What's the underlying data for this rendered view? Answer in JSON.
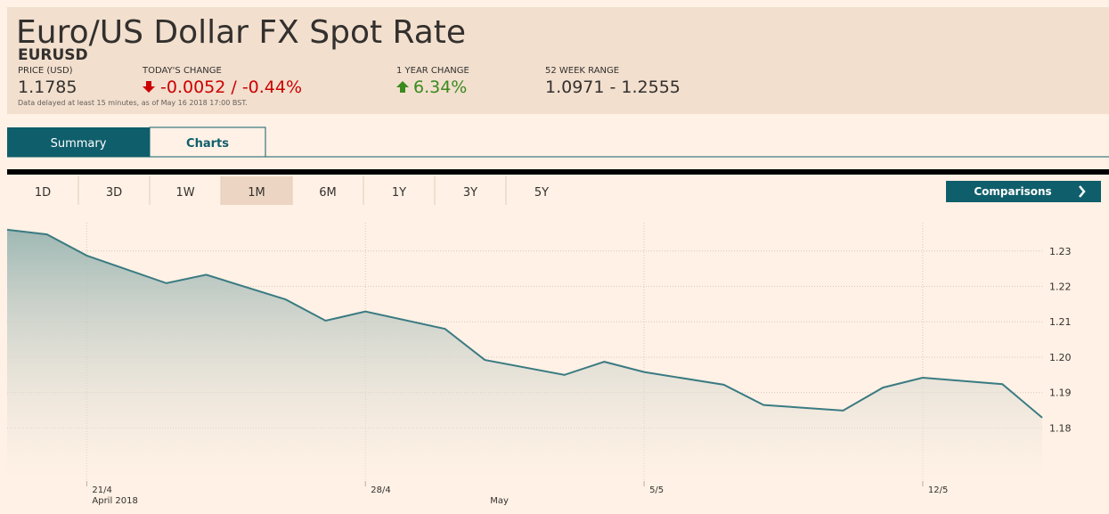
{
  "header": {
    "title": "Euro/US Dollar FX Spot Rate",
    "symbol": "EURUSD",
    "stats": [
      {
        "label": "PRICE (USD)",
        "value": "1.1785"
      },
      {
        "label": "TODAY'S CHANGE",
        "value": "-0.0052 / -0.44%"
      },
      {
        "label": "1 YEAR CHANGE",
        "value": "6.34%"
      },
      {
        "label": "52 WEEK RANGE",
        "value": "1.0971 - 1.2555"
      }
    ],
    "note": "Data delayed at least 15 minutes, as of May 16 2018 17:00 BST."
  },
  "tabs": [
    "Summary",
    "Charts"
  ],
  "ranges": [
    "1D",
    "3D",
    "1W",
    "1M",
    "6M",
    "1Y",
    "3Y",
    "5Y"
  ],
  "comparisons": "Comparisons",
  "chart_data": {
    "type": "line",
    "color": "#3a7b82",
    "grid": true,
    "x": [
      "2018-04-19",
      "2018-04-20",
      "2018-04-21",
      "2018-04-23",
      "2018-04-24",
      "2018-04-26",
      "2018-04-27",
      "2018-04-28",
      "2018-04-30",
      "2018-05-01",
      "2018-05-03",
      "2018-05-04",
      "2018-05-05",
      "2018-05-07",
      "2018-05-08",
      "2018-05-10",
      "2018-05-11",
      "2018-05-12",
      "2018-05-14",
      "2018-05-15"
    ],
    "values": [
      1.236,
      1.2347,
      1.2287,
      1.2209,
      1.2233,
      1.2163,
      1.2103,
      1.2129,
      1.208,
      1.1992,
      1.195,
      1.1987,
      1.1958,
      1.1922,
      1.1865,
      1.1849,
      1.1914,
      1.1942,
      1.1924,
      1.1829
    ],
    "xlim": [
      "2018-04-19",
      "2018-05-15"
    ],
    "ylim": [
      1.165,
      1.238
    ],
    "xticks": [
      {
        "value": "2018-04-21",
        "label": "21/4"
      },
      {
        "value": "2018-04-28",
        "label": "28/4"
      },
      {
        "value": "2018-05-05",
        "label": "5/5"
      },
      {
        "value": "2018-05-12",
        "label": "12/5"
      }
    ],
    "month_labels": [
      {
        "value": "2018-04-21",
        "label": "April 2018"
      },
      {
        "value": "2018-05-01",
        "label": "May"
      }
    ],
    "yticks": [
      1.18,
      1.19,
      {
        "value": 1.2,
        "label": "1.20"
      },
      1.21,
      1.22,
      1.23
    ]
  }
}
